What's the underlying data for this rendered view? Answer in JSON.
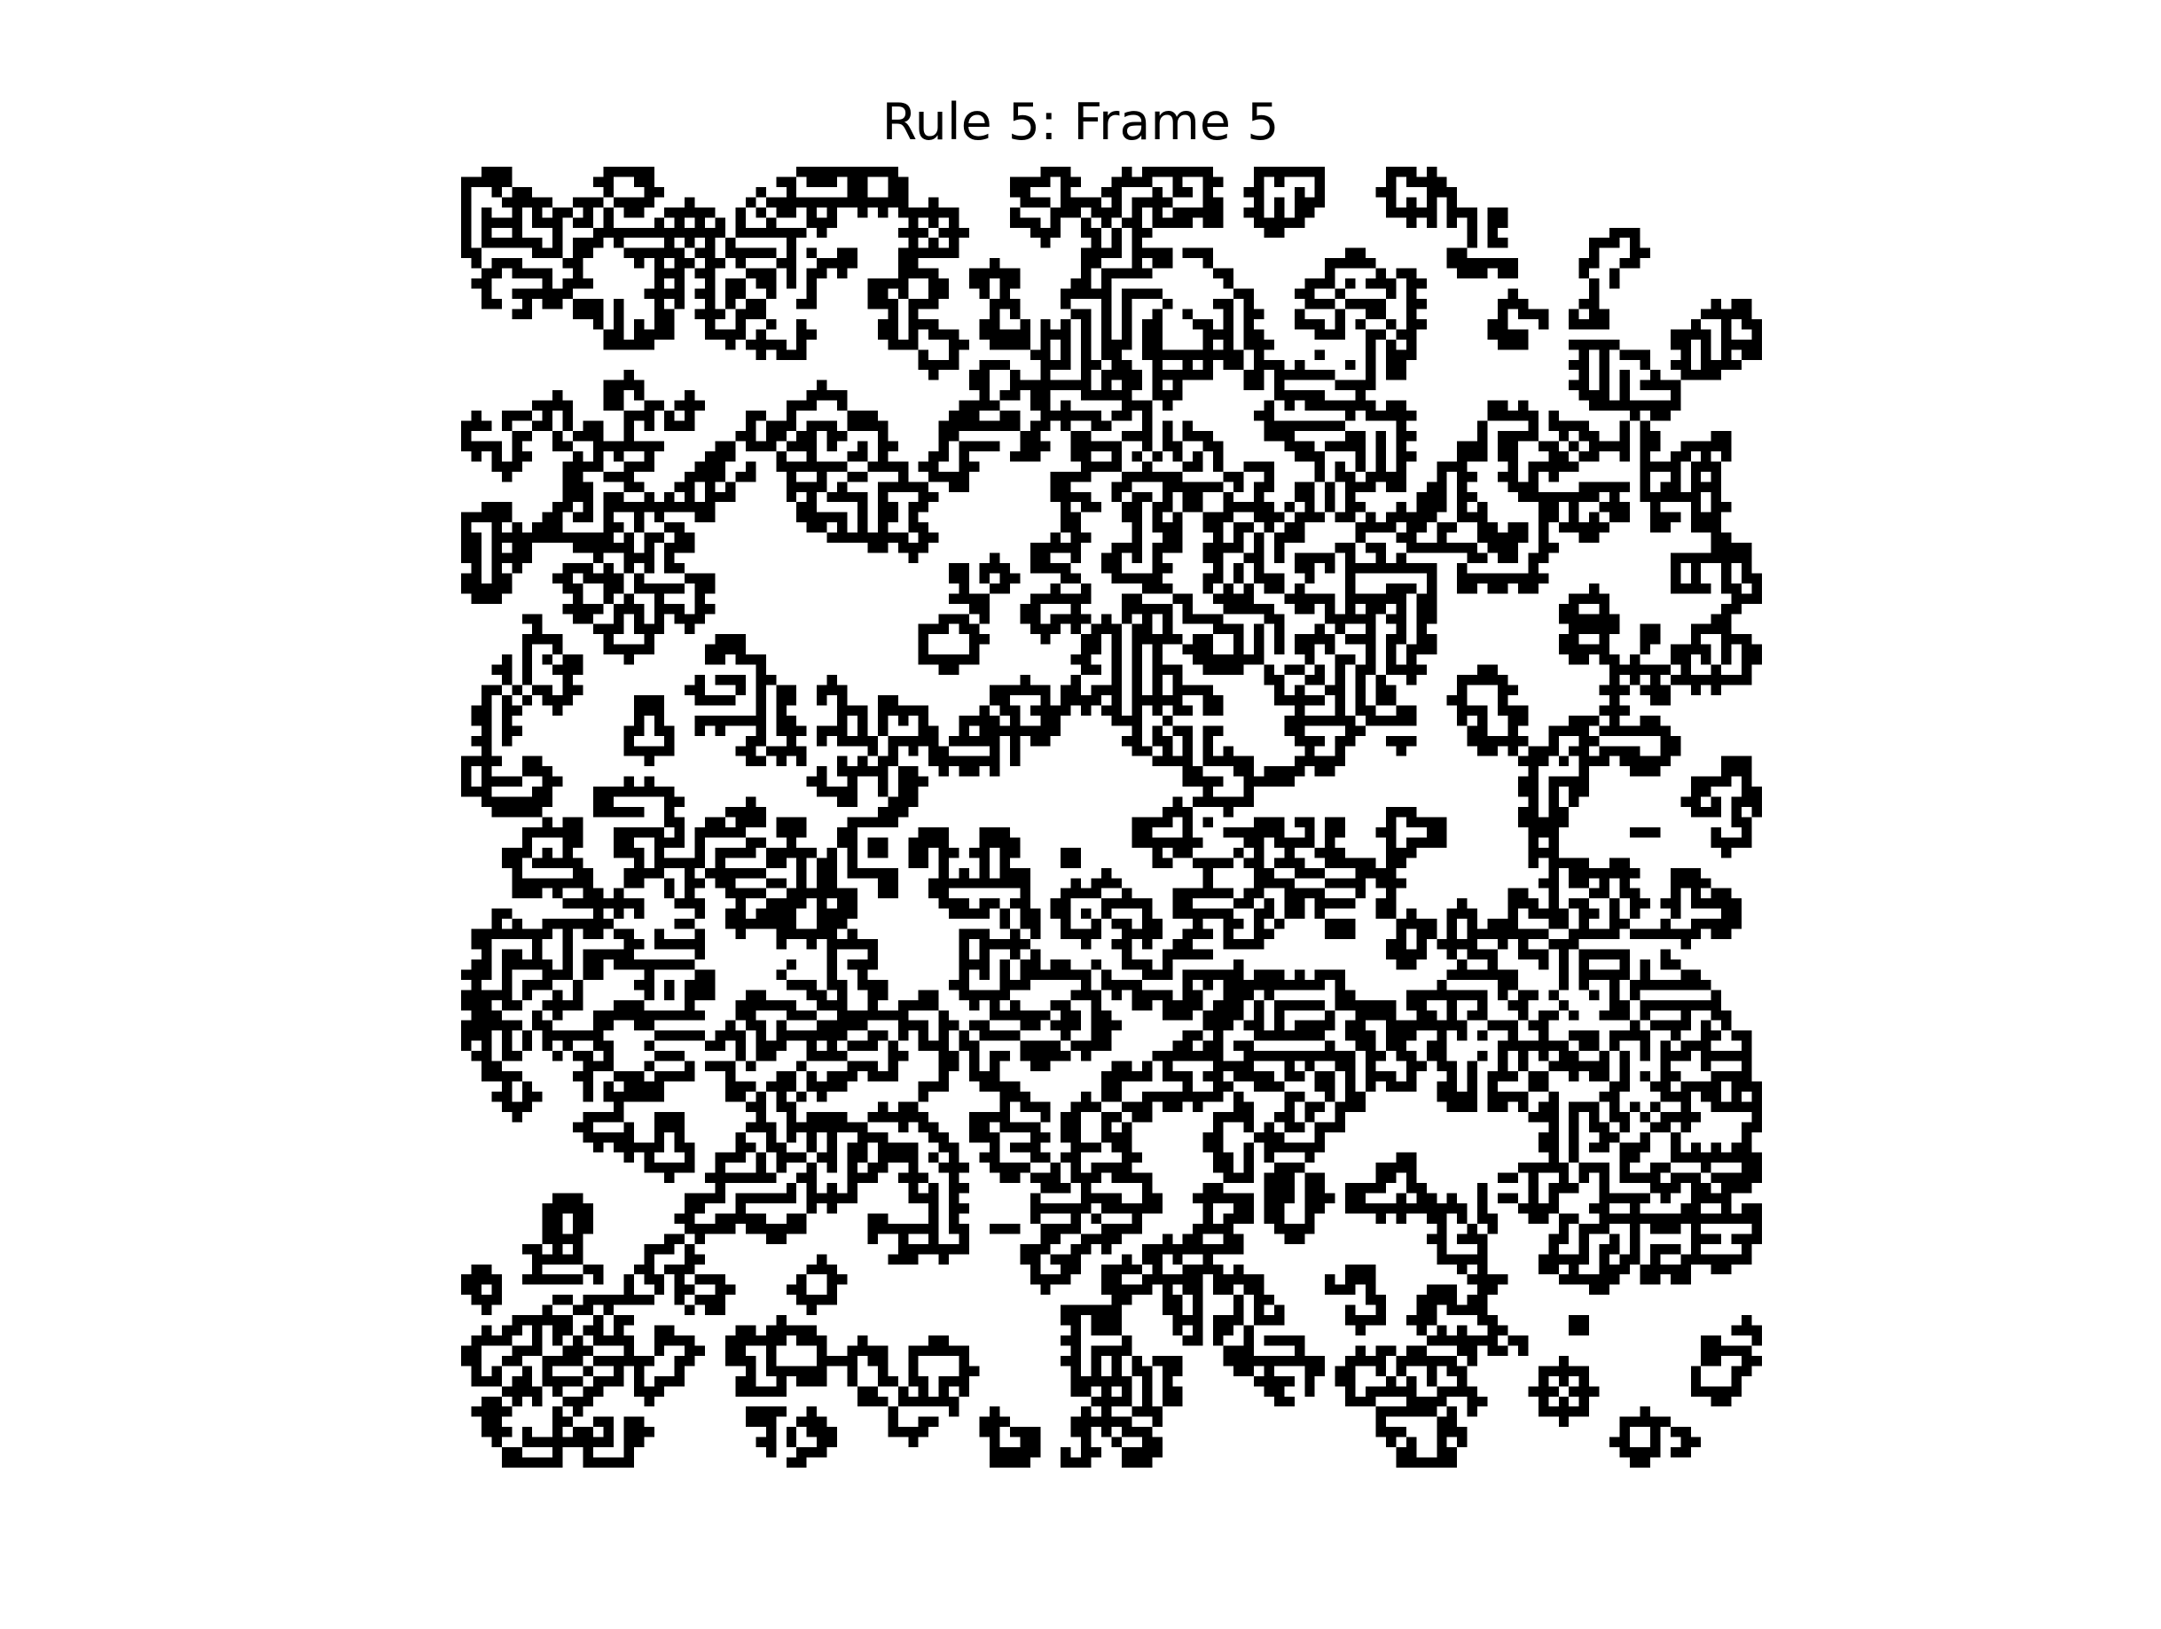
{
  "title": "Rule 5: Frame 5",
  "image": {
    "grid_cols": 128,
    "grid_rows": 128,
    "colors": {
      "alive": "#000000",
      "dead": "#ffffff"
    },
    "seed": 5
  }
}
